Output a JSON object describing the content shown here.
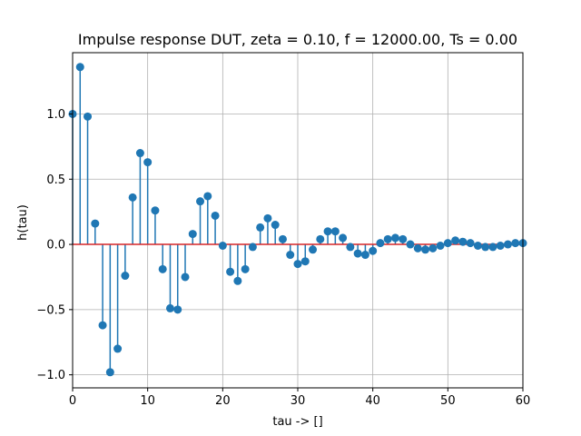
{
  "chart_data": {
    "type": "stem",
    "title": "Impulse response DUT, zeta = 0.10, f = 12000.00, Ts = 0.00",
    "xlabel": "tau -> []",
    "ylabel": "h(tau)",
    "xlim": [
      0,
      60
    ],
    "ylim": [
      -1.1,
      1.47
    ],
    "xticks": [
      0,
      10,
      20,
      30,
      40,
      50,
      60
    ],
    "yticks": [
      -1.0,
      -0.5,
      0.0,
      0.5,
      1.0
    ],
    "xtick_labels": [
      "0",
      "10",
      "20",
      "30",
      "40",
      "50",
      "60"
    ],
    "ytick_labels": [
      "−1.0",
      "−0.5",
      "0.0",
      "0.5",
      "1.0"
    ],
    "grid": true,
    "colors": {
      "stem": "#1f77b4",
      "baseline": "#d62728",
      "grid": "#b0b0b0"
    },
    "x": [
      0,
      1,
      2,
      3,
      4,
      5,
      6,
      7,
      8,
      9,
      10,
      11,
      12,
      13,
      14,
      15,
      16,
      17,
      18,
      19,
      20,
      21,
      22,
      23,
      24,
      25,
      26,
      27,
      28,
      29,
      30,
      31,
      32,
      33,
      34,
      35,
      36,
      37,
      38,
      39,
      40,
      41,
      42,
      43,
      44,
      45,
      46,
      47,
      48,
      49,
      50,
      51,
      52,
      53,
      54,
      55,
      56,
      57,
      58,
      59,
      60
    ],
    "values": [
      1.0,
      1.36,
      0.98,
      0.16,
      -0.62,
      -0.98,
      -0.8,
      -0.24,
      0.36,
      0.7,
      0.63,
      0.26,
      -0.19,
      -0.49,
      -0.5,
      -0.25,
      0.08,
      0.33,
      0.37,
      0.22,
      -0.01,
      -0.21,
      -0.28,
      -0.19,
      -0.02,
      0.13,
      0.2,
      0.15,
      0.04,
      -0.08,
      -0.15,
      -0.13,
      -0.04,
      0.04,
      0.1,
      0.1,
      0.05,
      -0.02,
      -0.07,
      -0.08,
      -0.05,
      0.01,
      0.04,
      0.05,
      0.04,
      0.0,
      -0.03,
      -0.04,
      -0.03,
      -0.01,
      0.01,
      0.03,
      0.02,
      0.01,
      -0.01,
      -0.02,
      -0.02,
      -0.01,
      0.0,
      0.01,
      0.01
    ]
  }
}
